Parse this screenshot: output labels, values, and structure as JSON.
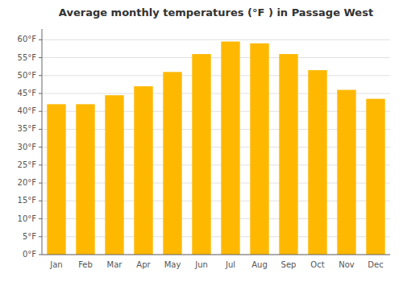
{
  "chart_data": {
    "type": "bar",
    "title": "Average monthly temperatures (°F ) in Passage West",
    "categories": [
      "Jan",
      "Feb",
      "Mar",
      "Apr",
      "May",
      "Jun",
      "Jul",
      "Aug",
      "Sep",
      "Oct",
      "Nov",
      "Dec"
    ],
    "values": [
      42,
      42,
      44.5,
      47,
      51,
      56,
      59.5,
      59,
      56,
      51.5,
      46,
      43.5
    ],
    "color": "#FFB800",
    "ylim": [
      0,
      63
    ],
    "yticks": [
      {
        "value": 0,
        "label": "0°F"
      },
      {
        "value": 5,
        "label": "5°F"
      },
      {
        "value": 10,
        "label": "10°F"
      },
      {
        "value": 15,
        "label": "15°F"
      },
      {
        "value": 20,
        "label": "20°F"
      },
      {
        "value": 25,
        "label": "25°F"
      },
      {
        "value": 30,
        "label": "30°F"
      },
      {
        "value": 35,
        "label": "35°F"
      },
      {
        "value": 40,
        "label": "40°F"
      },
      {
        "value": 45,
        "label": "45°F"
      },
      {
        "value": 50,
        "label": "50°F"
      },
      {
        "value": 55,
        "label": "55°F"
      },
      {
        "value": 60,
        "label": "60°F"
      }
    ],
    "grid": true
  }
}
